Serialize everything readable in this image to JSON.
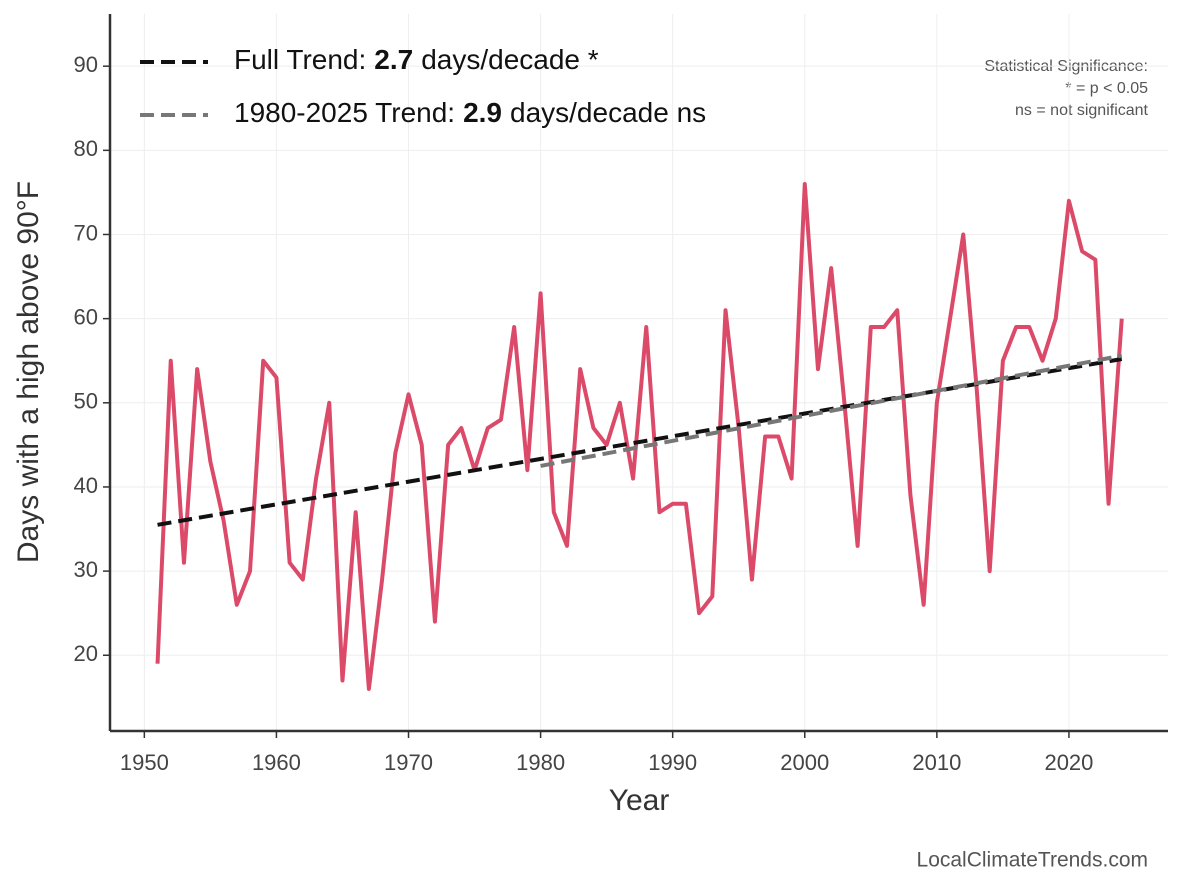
{
  "chart_data": {
    "type": "line",
    "x_label": "Year",
    "y_label": "Days with a high above 90°F",
    "color": "#dc4a6a",
    "x": [
      1951,
      1952,
      1953,
      1954,
      1955,
      1956,
      1957,
      1958,
      1959,
      1960,
      1961,
      1962,
      1963,
      1964,
      1965,
      1966,
      1967,
      1968,
      1969,
      1970,
      1971,
      1972,
      1973,
      1974,
      1975,
      1976,
      1977,
      1978,
      1979,
      1980,
      1981,
      1982,
      1983,
      1984,
      1985,
      1986,
      1987,
      1988,
      1989,
      1990,
      1991,
      1992,
      1993,
      1994,
      1995,
      1996,
      1997,
      1998,
      1999,
      2000,
      2001,
      2002,
      2003,
      2004,
      2005,
      2006,
      2007,
      2008,
      2009,
      2010,
      2011,
      2012,
      2013,
      2014,
      2015,
      2016,
      2017,
      2018,
      2019,
      2020,
      2021,
      2022,
      2023,
      2024
    ],
    "values": [
      19,
      55,
      31,
      54,
      43,
      36,
      26,
      30,
      55,
      53,
      31,
      29,
      41,
      50,
      17,
      37,
      16,
      29,
      44,
      51,
      45,
      24,
      45,
      47,
      42,
      47,
      48,
      59,
      42,
      63,
      37,
      33,
      54,
      47,
      45,
      50,
      41,
      59,
      37,
      38,
      38,
      25,
      27,
      61,
      47,
      29,
      46,
      46,
      41,
      76,
      54,
      66,
      50,
      33,
      59,
      59,
      61,
      39,
      26,
      50,
      60,
      70,
      52,
      30,
      55,
      59,
      59,
      55,
      60,
      74,
      68,
      67,
      38,
      60
    ],
    "trends": [
      {
        "name": "Full Trend:",
        "trend": 2.7,
        "trend_unit": "days/decade *",
        "color": "#111111",
        "x": [
          1951,
          2024
        ],
        "values": [
          35.5,
          55.2
        ]
      },
      {
        "name": "1980-2025 Trend:",
        "trend": 2.9,
        "trend_unit": "days/decade ns",
        "color": "#777777",
        "x": [
          1980,
          2024
        ],
        "values": [
          42.5,
          55.6
        ]
      }
    ],
    "xlim": [
      1947.4,
      2027.5
    ],
    "ylim": [
      11,
      96.2
    ],
    "xticks": [
      1950,
      1960,
      1970,
      1980,
      1990,
      2000,
      2010,
      2020
    ],
    "yticks": [
      20,
      30,
      40,
      50,
      60,
      70,
      80,
      90
    ],
    "grid": true,
    "annotations": [
      "Statistical Significance:",
      "* = p < 0.05",
      "ns = not significant"
    ],
    "source": "LocalClimateTrends.com"
  }
}
